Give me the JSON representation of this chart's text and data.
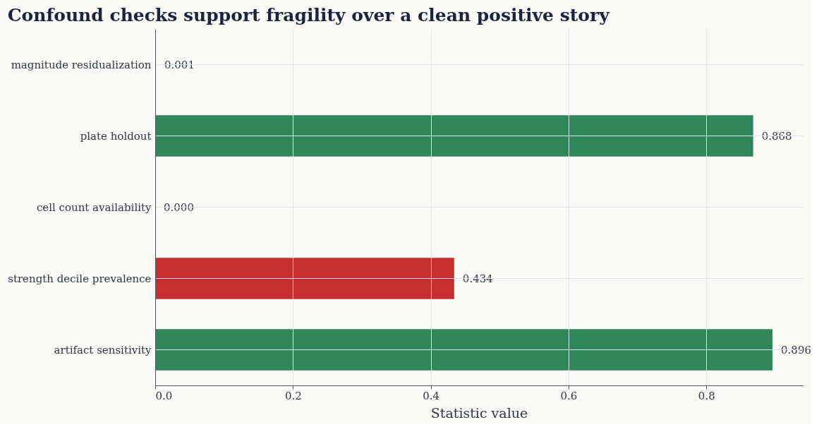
{
  "chart_data": {
    "type": "bar",
    "orientation": "horizontal",
    "title": "Confound checks support fragility over a clean positive story",
    "xlabel": "Statistic value",
    "categories": [
      "magnitude residualization",
      "plate holdout",
      "cell count availability",
      "strength decile prevalence",
      "artifact sensitivity"
    ],
    "values": [
      0.001,
      0.868,
      0.0,
      0.434,
      0.896
    ],
    "value_labels": [
      "0.001",
      "0.868",
      "0.000",
      "0.434",
      "0.896"
    ],
    "colors": [
      "#2e8659",
      "#2e8659",
      "#2e8659",
      "#c62f2f",
      "#2e8659"
    ],
    "xlim": [
      0,
      0.94
    ],
    "xticks": [
      {
        "value": 0,
        "label": "0.0"
      },
      {
        "value": 0.2,
        "label": "0.2"
      },
      {
        "value": 0.4,
        "label": "0.4"
      },
      {
        "value": 0.6,
        "label": "0.6"
      },
      {
        "value": 0.8,
        "label": "0.8"
      }
    ],
    "grid": true
  }
}
